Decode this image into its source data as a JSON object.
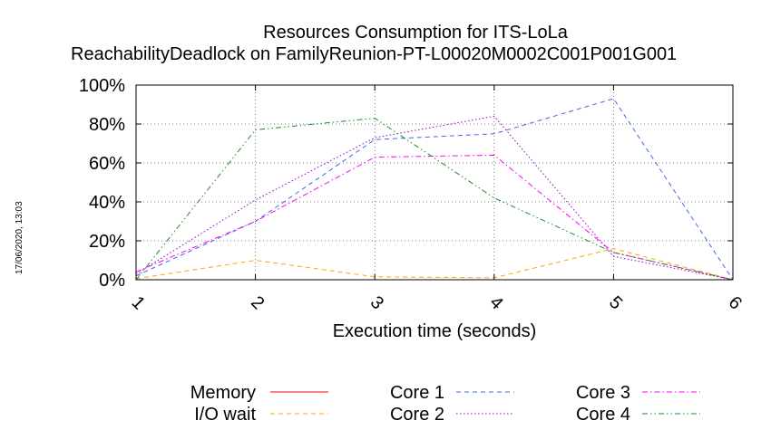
{
  "side_stamp": "17/06/2020, 13:03",
  "chart_data": {
    "type": "line",
    "title": "Resources Consumption for ITS-LoLa",
    "subtitle": "ReachabilityDeadlock on FamilyReunion-PT-L00020M0002C001P001G001",
    "xlabel": "Execution time (seconds)",
    "ylabel": "",
    "x": [
      1,
      2,
      3,
      4,
      5,
      6
    ],
    "xlim": [
      1,
      6
    ],
    "ylim": [
      0,
      100
    ],
    "x_ticks": [
      "1",
      "2",
      "3",
      "4",
      "5",
      "6"
    ],
    "y_ticks": [
      "0%",
      "20%",
      "40%",
      "60%",
      "80%",
      "100%"
    ],
    "grid": true,
    "legend_position": "bottom",
    "series": [
      {
        "name": "Memory",
        "color": "#ff0000",
        "dash": "solid",
        "values": [
          0,
          0,
          0,
          0,
          0,
          0
        ]
      },
      {
        "name": "I/O wait",
        "color": "#ffa500",
        "dash": "dashed",
        "values": [
          0.5,
          10,
          1.5,
          1,
          16,
          0
        ]
      },
      {
        "name": "Core 1",
        "color": "#4169e1",
        "dash": "dashed",
        "values": [
          2,
          30,
          72,
          75,
          93,
          0
        ]
      },
      {
        "name": "Core 2",
        "color": "#9400d3",
        "dash": "dotted",
        "values": [
          3,
          41,
          73,
          84,
          12,
          0
        ]
      },
      {
        "name": "Core 3",
        "color": "#ff00ff",
        "dash": "dashdot",
        "values": [
          4,
          30,
          63,
          64,
          14,
          0
        ]
      },
      {
        "name": "Core 4",
        "color": "#228b22",
        "dash": "dashdotdot",
        "values": [
          0,
          77,
          83,
          42,
          14,
          0
        ]
      }
    ]
  }
}
